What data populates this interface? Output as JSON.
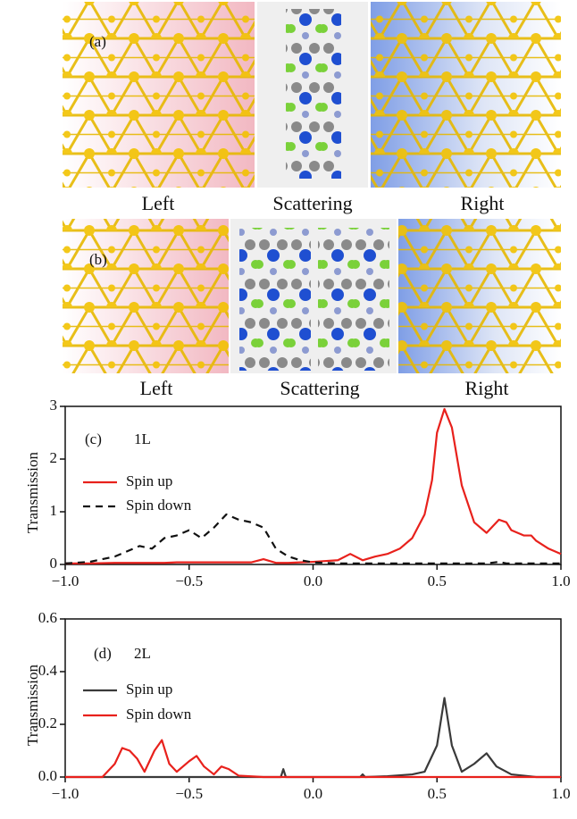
{
  "panels": [
    {
      "label": "(a)",
      "regions": [
        "Left",
        "Scattering",
        "Right"
      ]
    },
    {
      "label": "(b)",
      "regions": [
        "Left",
        "Scattering",
        "Right"
      ]
    }
  ],
  "chart_data": [
    {
      "type": "line",
      "annotations": [
        "(c)",
        "1L"
      ],
      "y_label": "Transmission",
      "x": [
        -1,
        -0.9,
        -0.8,
        -0.75,
        -0.7,
        -0.65,
        -0.6,
        -0.55,
        -0.5,
        -0.45,
        -0.4,
        -0.35,
        -0.3,
        -0.25,
        -0.2,
        -0.15,
        -0.1,
        -0.05,
        0,
        0.1,
        0.15,
        0.2,
        0.25,
        0.3,
        0.35,
        0.4,
        0.45,
        0.48,
        0.5,
        0.53,
        0.56,
        0.6,
        0.65,
        0.7,
        0.75,
        0.78,
        0.8,
        0.85,
        0.88,
        0.9,
        0.95,
        1.0
      ],
      "series": [
        {
          "name": "Spin up",
          "color": "#e8211c",
          "linestyle": "solid",
          "values": [
            0.02,
            0.02,
            0.03,
            0.03,
            0.03,
            0.03,
            0.03,
            0.04,
            0.04,
            0.04,
            0.04,
            0.04,
            0.04,
            0.04,
            0.1,
            0.03,
            0.03,
            0.04,
            0.05,
            0.08,
            0.2,
            0.08,
            0.15,
            0.2,
            0.3,
            0.5,
            0.95,
            1.6,
            2.5,
            2.95,
            2.6,
            1.5,
            0.8,
            0.6,
            0.85,
            0.8,
            0.65,
            0.55,
            0.55,
            0.45,
            0.3,
            0.2
          ]
        },
        {
          "name": "Spin down",
          "color": "#111111",
          "linestyle": "dashed",
          "values": [
            0.02,
            0.05,
            0.15,
            0.25,
            0.35,
            0.3,
            0.5,
            0.55,
            0.65,
            0.5,
            0.7,
            0.95,
            0.85,
            0.8,
            0.7,
            0.3,
            0.15,
            0.08,
            0.04,
            0.02,
            0.02,
            0.02,
            0.02,
            0.02,
            0.02,
            0.02,
            0.02,
            0.02,
            0.02,
            0.02,
            0.02,
            0.02,
            0.02,
            0.02,
            0.05,
            0.02,
            0.02,
            0.02,
            0.02,
            0.02,
            0.02,
            0.02
          ]
        }
      ],
      "xlim": [
        -1,
        1
      ],
      "xticks": [
        {
          "value": -1,
          "label": "−1.0"
        },
        {
          "value": -0.5,
          "label": "−0.5"
        },
        {
          "value": 0,
          "label": "0.0"
        },
        {
          "value": 0.5,
          "label": "0.5"
        },
        {
          "value": 1,
          "label": "1.0"
        }
      ],
      "ylim": [
        0,
        3
      ],
      "yticks": [
        0,
        1,
        2,
        3
      ],
      "grid": false
    },
    {
      "type": "line",
      "annotations": [
        "(d)",
        "2L"
      ],
      "y_label": "Transmission",
      "x": [
        -1,
        -0.85,
        -0.8,
        -0.77,
        -0.74,
        -0.71,
        -0.68,
        -0.64,
        -0.61,
        -0.58,
        -0.55,
        -0.5,
        -0.47,
        -0.44,
        -0.4,
        -0.37,
        -0.34,
        -0.3,
        -0.2,
        -0.13,
        -0.12,
        -0.11,
        0,
        0.19,
        0.2,
        0.21,
        0.3,
        0.4,
        0.45,
        0.5,
        0.53,
        0.56,
        0.6,
        0.65,
        0.7,
        0.74,
        0.8,
        0.9,
        1.0
      ],
      "series": [
        {
          "name": "Spin up",
          "color": "#3a3a3a",
          "linestyle": "solid",
          "values": [
            0,
            0,
            0,
            0,
            0,
            0,
            0,
            0,
            0,
            0,
            0,
            0,
            0,
            0,
            0,
            0,
            0,
            0,
            0,
            0,
            0.03,
            0,
            0,
            0,
            0.01,
            0,
            0.003,
            0.01,
            0.02,
            0.12,
            0.3,
            0.12,
            0.02,
            0.05,
            0.09,
            0.04,
            0.01,
            0,
            0
          ]
        },
        {
          "name": "Spin down",
          "color": "#e8211c",
          "linestyle": "solid",
          "values": [
            0,
            0,
            0.05,
            0.11,
            0.1,
            0.07,
            0.02,
            0.1,
            0.14,
            0.05,
            0.02,
            0.06,
            0.08,
            0.04,
            0.01,
            0.04,
            0.03,
            0.005,
            0,
            0,
            0,
            0,
            0,
            0,
            0,
            0,
            0,
            0,
            0,
            0,
            0,
            0,
            0,
            0,
            0,
            0,
            0,
            0,
            0
          ]
        }
      ],
      "xlim": [
        -1,
        1
      ],
      "xticks": [
        {
          "value": -1,
          "label": "−1.0"
        },
        {
          "value": -0.5,
          "label": "−0.5"
        },
        {
          "value": 0,
          "label": "0.0"
        },
        {
          "value": 0.5,
          "label": "0.5"
        },
        {
          "value": 1,
          "label": "1.0"
        }
      ],
      "ylim": [
        0,
        0.6
      ],
      "yticks": [
        {
          "value": 0,
          "label": "0.0"
        },
        0.2,
        0.4,
        0.6
      ],
      "grid": false
    }
  ]
}
